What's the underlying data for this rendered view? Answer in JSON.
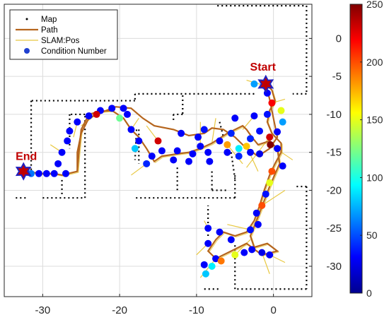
{
  "chart_data": {
    "type": "scatter",
    "title": "",
    "xlabel": "",
    "ylabel": "",
    "xlim": [
      -35,
      5
    ],
    "ylim": [
      -34,
      4.5
    ],
    "x_ticks": [
      -30,
      -20,
      -10,
      0
    ],
    "y_ticks": [
      0,
      -5,
      -10,
      -15,
      -20,
      -25,
      -30
    ],
    "grid": true,
    "legend_placement": "top-left",
    "legend": [
      {
        "label": "Map",
        "marker": "dot",
        "color": "#000000"
      },
      {
        "label": "Path",
        "marker": "line",
        "color": "#b5651d"
      },
      {
        "label": "SLAM:Pos",
        "marker": "line",
        "color": "#e8c840"
      },
      {
        "label": "Condition Number",
        "marker": "circle",
        "color": "#2040d0"
      }
    ],
    "colorbar": {
      "min": 0,
      "max": 250,
      "ticks": [
        0,
        50,
        100,
        150,
        200,
        250
      ],
      "colormap": [
        "#00008f",
        "#0000ff",
        "#0080ff",
        "#00ffff",
        "#80ff80",
        "#ffff00",
        "#ff8000",
        "#ff0000",
        "#800000"
      ]
    },
    "annotations": [
      {
        "label": "Start",
        "x": -1,
        "y": -6,
        "color": "#c00000"
      },
      {
        "label": "End",
        "x": -32.5,
        "y": -17.5,
        "color": "#c00000"
      }
    ],
    "markers": [
      {
        "name": "start",
        "x": -1,
        "y": -6,
        "color": "#c00000",
        "outline": "#2020c0"
      },
      {
        "name": "end",
        "x": -32.5,
        "y": -17.5,
        "color": "#c00000",
        "outline": "#2020c0"
      }
    ],
    "map_segments": [
      [
        [
          -7.3,
          4.3
        ],
        [
          4.3,
          4.3
        ]
      ],
      [
        [
          4.3,
          4.3
        ],
        [
          4.3,
          -7.3
        ]
      ],
      [
        [
          4.3,
          -7.3
        ],
        [
          2.5,
          -7.3
        ]
      ],
      [
        [
          4.3,
          -19.5
        ],
        [
          3.0,
          -19.5
        ]
      ],
      [
        [
          4.3,
          -19.5
        ],
        [
          4.3,
          -33.0
        ]
      ],
      [
        [
          4.3,
          -33.0
        ],
        [
          -5.0,
          -33.0
        ]
      ],
      [
        [
          -5.0,
          -33.0
        ],
        [
          -5.0,
          -27.0
        ]
      ],
      [
        [
          -5.0,
          -21.0
        ],
        [
          -5.0,
          -18.0
        ]
      ],
      [
        [
          -5.0,
          -21.0
        ],
        [
          -18.0,
          -21.0
        ]
      ],
      [
        [
          -9.0,
          -33.0
        ],
        [
          -7.0,
          -33.0
        ]
      ],
      [
        [
          -8.5,
          -26.0
        ],
        [
          -8.5,
          -22.0
        ]
      ],
      [
        [
          -2.5,
          -7.3
        ],
        [
          -18.0,
          -7.3
        ]
      ],
      [
        [
          -18.0,
          -7.3
        ],
        [
          -18.0,
          -8.2
        ]
      ],
      [
        [
          -18.0,
          -8.2
        ],
        [
          -31.5,
          -8.2
        ]
      ],
      [
        [
          -31.5,
          -8.2
        ],
        [
          -31.5,
          -17.5
        ]
      ],
      [
        [
          -33.5,
          -21.0
        ],
        [
          -32.0,
          -21.0
        ]
      ],
      [
        [
          -30.0,
          -21.0
        ],
        [
          -24.5,
          -21.0
        ]
      ],
      [
        [
          -24.5,
          -21.0
        ],
        [
          -24.5,
          -10.0
        ]
      ],
      [
        [
          -24.5,
          -10.0
        ],
        [
          -26.5,
          -10.0
        ]
      ],
      [
        [
          -26.5,
          -10.0
        ],
        [
          -26.5,
          -14.5
        ]
      ],
      [
        [
          -27.5,
          -20.5
        ],
        [
          -27.5,
          -18.5
        ]
      ],
      [
        [
          -11.8,
          -7.5
        ],
        [
          -11.8,
          -10.0
        ]
      ],
      [
        [
          -11.8,
          -10.0
        ],
        [
          -13.0,
          -10.0
        ]
      ],
      [
        [
          -13.0,
          -10.0
        ],
        [
          -13.0,
          -11.0
        ]
      ],
      [
        [
          -17.5,
          -12.0
        ],
        [
          -17.5,
          -16.5
        ]
      ],
      [
        [
          -17.8,
          -12.0
        ],
        [
          -18.0,
          -16.0
        ]
      ],
      [
        [
          -12.5,
          -17.0
        ],
        [
          -12.5,
          -20.0
        ]
      ],
      [
        [
          -8.0,
          -17.5
        ],
        [
          -8.0,
          -20.0
        ]
      ],
      [
        [
          -8.0,
          -20.0
        ],
        [
          -6.0,
          -20.0
        ]
      ],
      [
        [
          -7.0,
          -11.0
        ],
        [
          -6.5,
          -13.0
        ]
      ],
      [
        [
          -5.5,
          -15.0
        ],
        [
          -5.0,
          -18.5
        ]
      ]
    ],
    "path": [
      [
        -1.0,
        -6.0
      ],
      [
        -0.2,
        -6.8
      ],
      [
        0.2,
        -8.2
      ],
      [
        -0.5,
        -9.5
      ],
      [
        -0.8,
        -11.0
      ],
      [
        -0.2,
        -12.5
      ],
      [
        1.0,
        -13.8
      ],
      [
        1.0,
        -15.0
      ],
      [
        0.2,
        -16.5
      ],
      [
        -0.5,
        -18.0
      ],
      [
        -1.2,
        -20.0
      ],
      [
        -1.8,
        -22.0
      ],
      [
        -2.5,
        -24.0
      ],
      [
        -3.5,
        -25.5
      ],
      [
        -5.0,
        -26.0
      ],
      [
        -6.5,
        -25.5
      ],
      [
        -7.5,
        -26.5
      ],
      [
        -8.5,
        -28.0
      ],
      [
        -7.5,
        -29.0
      ],
      [
        -5.5,
        -28.0
      ],
      [
        -3.5,
        -27.0
      ],
      [
        -1.5,
        -28.5
      ],
      [
        0.5,
        -28.0
      ],
      [
        -0.8,
        -27.0
      ],
      [
        -2.5,
        -27.5
      ],
      [
        -3.0,
        -26.0
      ],
      [
        -2.0,
        -23.5
      ],
      [
        -0.5,
        -19.5
      ],
      [
        0.8,
        -16.5
      ],
      [
        0.5,
        -14.5
      ],
      [
        -0.5,
        -13.5
      ],
      [
        -2.0,
        -14.0
      ],
      [
        -2.8,
        -13.0
      ],
      [
        -3.5,
        -12.0
      ],
      [
        -4.0,
        -11.5
      ],
      [
        -6.0,
        -12.5
      ],
      [
        -8.0,
        -13.8
      ],
      [
        -9.5,
        -14.5
      ],
      [
        -11.0,
        -15.0
      ],
      [
        -12.5,
        -15.2
      ],
      [
        -14.5,
        -15.5
      ],
      [
        -15.5,
        -16.2
      ],
      [
        -16.5,
        -14.5
      ],
      [
        -17.5,
        -13.0
      ],
      [
        -18.5,
        -12.0
      ],
      [
        -19.5,
        -10.5
      ],
      [
        -21.0,
        -9.5
      ],
      [
        -22.5,
        -9.6
      ],
      [
        -24.0,
        -10.0
      ],
      [
        -25.0,
        -12.0
      ],
      [
        -25.3,
        -15.0
      ],
      [
        -25.5,
        -17.5
      ],
      [
        -27.5,
        -18.0
      ],
      [
        -28.5,
        -17.8
      ],
      [
        -30.0,
        -17.8
      ],
      [
        -32.5,
        -17.5
      ]
    ],
    "path2": [
      [
        -25.5,
        -17.5
      ],
      [
        -25.5,
        -15.0
      ],
      [
        -25.0,
        -12.5
      ],
      [
        -24.0,
        -10.5
      ],
      [
        -22.5,
        -9.8
      ],
      [
        -20.5,
        -9.0
      ],
      [
        -18.5,
        -9.2
      ],
      [
        -17.0,
        -10.5
      ],
      [
        -15.5,
        -11.5
      ],
      [
        -13.0,
        -12.0
      ],
      [
        -11.0,
        -12.8
      ],
      [
        -9.0,
        -12.5
      ],
      [
        -8.0,
        -11.8
      ],
      [
        -6.5,
        -12.0
      ],
      [
        -5.0,
        -13.0
      ],
      [
        -3.5,
        -14.5
      ],
      [
        -2.0,
        -15.5
      ],
      [
        -0.5,
        -14.5
      ],
      [
        0.5,
        -13.0
      ],
      [
        0.0,
        -10.5
      ],
      [
        -0.5,
        -8.0
      ],
      [
        -1.0,
        -6.0
      ]
    ],
    "points": [
      {
        "x": -1.2,
        "y": -6.2,
        "v": 30
      },
      {
        "x": -2.5,
        "y": -6.0,
        "v": 70
      },
      {
        "x": -0.8,
        "y": -7.2,
        "v": 30
      },
      {
        "x": -0.2,
        "y": -8.5,
        "v": 220
      },
      {
        "x": 1.0,
        "y": -9.5,
        "v": 150
      },
      {
        "x": -0.8,
        "y": -10.0,
        "v": 35
      },
      {
        "x": 1.2,
        "y": -11.0,
        "v": 70
      },
      {
        "x": 0.5,
        "y": -12.3,
        "v": 30
      },
      {
        "x": -2.5,
        "y": -10.2,
        "v": 30
      },
      {
        "x": -1.8,
        "y": -12.2,
        "v": 35
      },
      {
        "x": -0.5,
        "y": -13.0,
        "v": 230
      },
      {
        "x": -0.4,
        "y": -14.0,
        "v": 250
      },
      {
        "x": -3.0,
        "y": -13.2,
        "v": 40
      },
      {
        "x": -3.0,
        "y": -15.0,
        "v": 30
      },
      {
        "x": -3.5,
        "y": -14.2,
        "v": 170
      },
      {
        "x": -4.5,
        "y": -14.5,
        "v": 90
      },
      {
        "x": -1.8,
        "y": -15.2,
        "v": 25
      },
      {
        "x": 0.5,
        "y": -14.5,
        "v": 30
      },
      {
        "x": 1.2,
        "y": -16.8,
        "v": 30
      },
      {
        "x": -0.2,
        "y": -17.5,
        "v": 200
      },
      {
        "x": -0.5,
        "y": -19.0,
        "v": 150
      },
      {
        "x": -1.0,
        "y": -20.5,
        "v": 35
      },
      {
        "x": -1.5,
        "y": -22.0,
        "v": 200
      },
      {
        "x": -2.2,
        "y": -23.0,
        "v": 30
      },
      {
        "x": -2.0,
        "y": -24.5,
        "v": 30
      },
      {
        "x": -3.0,
        "y": -25.2,
        "v": 35
      },
      {
        "x": -2.8,
        "y": -27.8,
        "v": 30
      },
      {
        "x": -3.8,
        "y": -28.2,
        "v": 30
      },
      {
        "x": -1.5,
        "y": -28.2,
        "v": 25
      },
      {
        "x": -0.5,
        "y": -28.5,
        "v": 30
      },
      {
        "x": -5.0,
        "y": -28.5,
        "v": 150
      },
      {
        "x": -5.5,
        "y": -26.5,
        "v": 30
      },
      {
        "x": -7.0,
        "y": -25.5,
        "v": 30
      },
      {
        "x": -8.5,
        "y": -25.0,
        "v": 30
      },
      {
        "x": -8.5,
        "y": -27.0,
        "v": 30
      },
      {
        "x": -7.5,
        "y": -29.0,
        "v": 30
      },
      {
        "x": -8.0,
        "y": -30.0,
        "v": 90
      },
      {
        "x": -9.0,
        "y": -29.8,
        "v": 30
      },
      {
        "x": -6.8,
        "y": -29.3,
        "v": 190
      },
      {
        "x": -8.8,
        "y": -31.0,
        "v": 80
      },
      {
        "x": -7.0,
        "y": -13.5,
        "v": 30
      },
      {
        "x": -6.0,
        "y": -14.0,
        "v": 180
      },
      {
        "x": -5.5,
        "y": -12.5,
        "v": 40
      },
      {
        "x": -9.0,
        "y": -12.0,
        "v": 35
      },
      {
        "x": -9.8,
        "y": -13.0,
        "v": 30
      },
      {
        "x": -9.5,
        "y": -14.2,
        "v": 30
      },
      {
        "x": -8.5,
        "y": -15.0,
        "v": 30
      },
      {
        "x": -10.5,
        "y": -15.2,
        "v": 30
      },
      {
        "x": -8.3,
        "y": -16.2,
        "v": 30
      },
      {
        "x": -11.0,
        "y": -16.2,
        "v": 30
      },
      {
        "x": -12.5,
        "y": -14.8,
        "v": 30
      },
      {
        "x": -13.0,
        "y": -16.0,
        "v": 30
      },
      {
        "x": -14.5,
        "y": -14.8,
        "v": 30
      },
      {
        "x": -15.0,
        "y": -13.5,
        "v": 230
      },
      {
        "x": -15.8,
        "y": -15.5,
        "v": 30
      },
      {
        "x": -16.5,
        "y": -16.5,
        "v": 40
      },
      {
        "x": -17.5,
        "y": -13.5,
        "v": 30
      },
      {
        "x": -18.0,
        "y": -14.5,
        "v": 80
      },
      {
        "x": -18.5,
        "y": -12.0,
        "v": 30
      },
      {
        "x": -19.0,
        "y": -10.0,
        "v": 30
      },
      {
        "x": -19.5,
        "y": -9.2,
        "v": 30
      },
      {
        "x": -20.0,
        "y": -10.5,
        "v": 120
      },
      {
        "x": -21.0,
        "y": -9.2,
        "v": 30
      },
      {
        "x": -22.5,
        "y": -9.5,
        "v": 30
      },
      {
        "x": -23.0,
        "y": -10.0,
        "v": 230
      },
      {
        "x": -24.0,
        "y": -10.2,
        "v": 30
      },
      {
        "x": -25.5,
        "y": -11.0,
        "v": 30
      },
      {
        "x": -26.5,
        "y": -12.2,
        "v": 30
      },
      {
        "x": -26.8,
        "y": -13.5,
        "v": 30
      },
      {
        "x": -27.5,
        "y": -15.0,
        "v": 30
      },
      {
        "x": -28.0,
        "y": -16.5,
        "v": 30
      },
      {
        "x": -27.0,
        "y": -17.8,
        "v": 30
      },
      {
        "x": -28.5,
        "y": -17.8,
        "v": 30
      },
      {
        "x": -29.5,
        "y": -17.8,
        "v": 30
      },
      {
        "x": -30.5,
        "y": -17.8,
        "v": 30
      },
      {
        "x": -31.5,
        "y": -17.8,
        "v": 60
      },
      {
        "x": -12.0,
        "y": -12.5,
        "v": 30
      },
      {
        "x": -5.0,
        "y": -10.5,
        "v": 30
      },
      {
        "x": -4.5,
        "y": -15.5,
        "v": 40
      },
      {
        "x": -6.0,
        "y": -15.0,
        "v": 30
      }
    ],
    "slam_spikes": [
      [
        [
          -1.2,
          -6.2
        ],
        [
          -3.5,
          -5.5
        ]
      ],
      [
        [
          -0.2,
          -8.5
        ],
        [
          1.5,
          -8.0
        ]
      ],
      [
        [
          -0.5,
          -13.0
        ],
        [
          -3.5,
          -17.0
        ]
      ],
      [
        [
          -0.4,
          -14.0
        ],
        [
          2.5,
          -16.0
        ]
      ],
      [
        [
          -1.5,
          -22.0
        ],
        [
          1.5,
          -20.0
        ]
      ],
      [
        [
          -3.0,
          -25.2
        ],
        [
          -6.0,
          -24.5
        ]
      ],
      [
        [
          -5.0,
          -28.5
        ],
        [
          -3.0,
          -26.5
        ]
      ],
      [
        [
          -8.5,
          -27.0
        ],
        [
          -10.0,
          -28.5
        ]
      ],
      [
        [
          -7.5,
          -29.0
        ],
        [
          -9.5,
          -31.5
        ]
      ],
      [
        [
          -0.5,
          -28.5
        ],
        [
          1.5,
          -29.5
        ]
      ],
      [
        [
          -1.5,
          -28.2
        ],
        [
          -0.5,
          -31.0
        ]
      ],
      [
        [
          -8.5,
          -25.0
        ],
        [
          -9.0,
          -24.0
        ]
      ],
      [
        [
          -8.0,
          -13.8
        ],
        [
          -7.5,
          -10.5
        ]
      ],
      [
        [
          -9.5,
          -14.5
        ],
        [
          -9.5,
          -11.0
        ]
      ],
      [
        [
          -15.0,
          -13.5
        ],
        [
          -16.5,
          -11.5
        ]
      ],
      [
        [
          -16.5,
          -16.5
        ],
        [
          -18.5,
          -18.0
        ]
      ],
      [
        [
          -18.5,
          -12.0
        ],
        [
          -17.5,
          -10.5
        ]
      ],
      [
        [
          -23.0,
          -10.0
        ],
        [
          -25.0,
          -11.5
        ]
      ],
      [
        [
          -25.5,
          -11.0
        ],
        [
          -26.0,
          -13.0
        ]
      ],
      [
        [
          -27.5,
          -15.0
        ],
        [
          -29.0,
          -14.0
        ]
      ],
      [
        [
          -6.0,
          -14.0
        ],
        [
          -4.0,
          -16.5
        ]
      ],
      [
        [
          -3.5,
          -14.2
        ],
        [
          -2.0,
          -17.5
        ]
      ],
      [
        [
          -2.5,
          -10.2
        ],
        [
          -4.0,
          -12.0
        ]
      ]
    ]
  }
}
